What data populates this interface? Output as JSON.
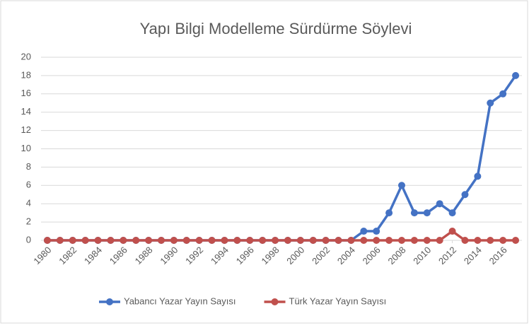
{
  "chart_data": {
    "type": "line",
    "title": "Yapı Bilgi Modelleme Sürdürme Söylevi",
    "x": [
      1980,
      1981,
      1982,
      1983,
      1984,
      1985,
      1986,
      1987,
      1988,
      1989,
      1990,
      1991,
      1992,
      1993,
      1994,
      1995,
      1996,
      1997,
      1998,
      1999,
      2000,
      2001,
      2002,
      2003,
      2004,
      2005,
      2006,
      2007,
      2008,
      2009,
      2010,
      2011,
      2012,
      2013,
      2014,
      2015,
      2016,
      2017
    ],
    "series": [
      {
        "name": "Yabancı Yazar Yayın Sayısı",
        "color": "#4472c4",
        "values": [
          0,
          0,
          0,
          0,
          0,
          0,
          0,
          0,
          0,
          0,
          0,
          0,
          0,
          0,
          0,
          0,
          0,
          0,
          0,
          0,
          0,
          0,
          0,
          0,
          0,
          1,
          1,
          3,
          6,
          3,
          3,
          4,
          3,
          5,
          7,
          15,
          16,
          18
        ]
      },
      {
        "name": "Türk Yazar Yayın Sayısı",
        "color": "#c0504d",
        "values": [
          0,
          0,
          0,
          0,
          0,
          0,
          0,
          0,
          0,
          0,
          0,
          0,
          0,
          0,
          0,
          0,
          0,
          0,
          0,
          0,
          0,
          0,
          0,
          0,
          0,
          0,
          0,
          0,
          0,
          0,
          0,
          0,
          1,
          0,
          0,
          0,
          0,
          0
        ]
      }
    ],
    "xlim": [
      1979.5,
      2017.5
    ],
    "xticks": [
      1980,
      1982,
      1984,
      1986,
      1988,
      1990,
      1992,
      1994,
      1996,
      1998,
      2000,
      2002,
      2004,
      2006,
      2008,
      2010,
      2012,
      2014,
      2016
    ],
    "ylim": [
      0,
      20
    ],
    "yticks": [
      0,
      2,
      4,
      6,
      8,
      10,
      12,
      14,
      16,
      18,
      20
    ],
    "grid": true,
    "legend": "bottom"
  }
}
